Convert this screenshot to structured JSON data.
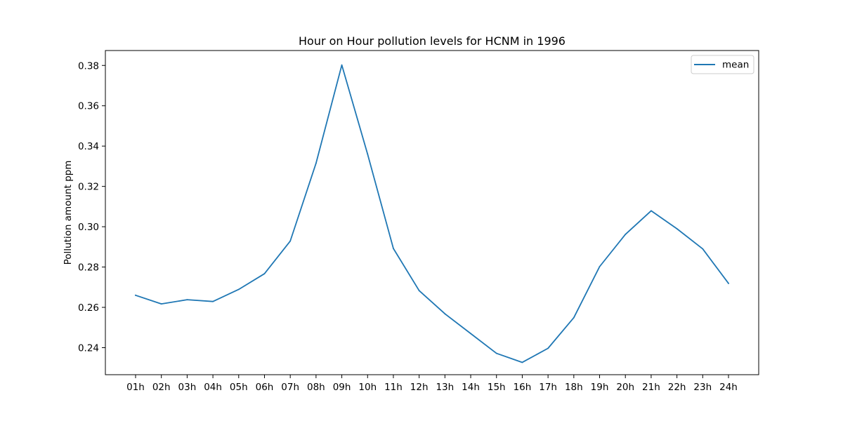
{
  "chart_data": {
    "type": "line",
    "title": "Hour on Hour pollution levels for HCNM in 1996",
    "xlabel": "",
    "ylabel": "Pollution amount ppm",
    "categories": [
      "01h",
      "02h",
      "03h",
      "04h",
      "05h",
      "06h",
      "07h",
      "08h",
      "09h",
      "10h",
      "11h",
      "12h",
      "13h",
      "14h",
      "15h",
      "16h",
      "17h",
      "18h",
      "19h",
      "20h",
      "21h",
      "22h",
      "23h",
      "24h"
    ],
    "series": [
      {
        "name": "mean",
        "color": "#1f77b4",
        "values": [
          0.266,
          0.2617,
          0.2638,
          0.2629,
          0.2689,
          0.2767,
          0.2929,
          0.3315,
          0.3802,
          0.336,
          0.2892,
          0.2683,
          0.2568,
          0.247,
          0.2372,
          0.2327,
          0.2397,
          0.2549,
          0.2802,
          0.2962,
          0.3079,
          0.299,
          0.289,
          0.2719
        ]
      }
    ],
    "ylim": [
      0.2266,
      0.3874
    ],
    "yticks": [
      0.24,
      0.26,
      0.28,
      0.3,
      0.32,
      0.34,
      0.36,
      0.38
    ],
    "ytick_labels": [
      "0.24",
      "0.26",
      "0.28",
      "0.30",
      "0.32",
      "0.34",
      "0.36",
      "0.38"
    ],
    "legend_position": "top-right",
    "grid": false
  }
}
